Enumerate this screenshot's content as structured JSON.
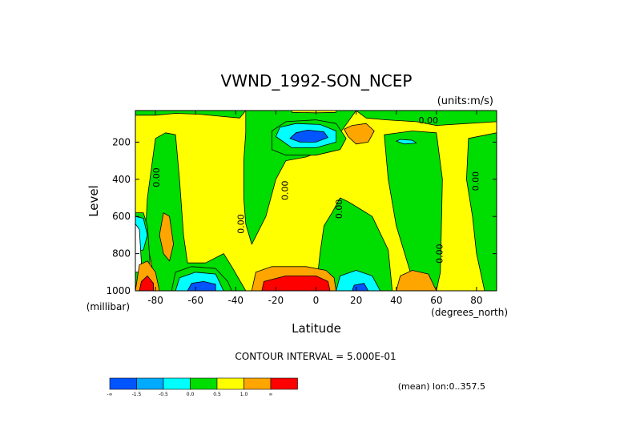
{
  "chart_data": {
    "type": "contour",
    "title": "VWND_1992-SON_NCEP",
    "units_label": "(units:m/s)",
    "xlabel": "Latitude",
    "x_unit_label": "(degrees_north)",
    "ylabel": "Level",
    "y_unit_label": "(millibar)",
    "xlim": [
      -90,
      90
    ],
    "ylim": [
      1000,
      30
    ],
    "y_inverted": true,
    "x_ticks": [
      "-80",
      "-60",
      "-40",
      "-20",
      "0",
      "20",
      "40",
      "60",
      "80"
    ],
    "x_tick_values": [
      -80,
      -60,
      -40,
      -20,
      0,
      20,
      40,
      60,
      80
    ],
    "y_ticks": [
      "200",
      "400",
      "600",
      "800",
      "1000"
    ],
    "y_tick_values": [
      200,
      400,
      600,
      800,
      1000
    ],
    "contour_interval_text": "CONTOUR INTERVAL = 5.000E-01",
    "footer_text": "(mean) lon:0..357.5",
    "contour_labels": [
      {
        "text": "0.00",
        "lat": 56,
        "level": 100
      },
      {
        "text": "0.00",
        "lat": -78,
        "level": 390
      },
      {
        "text": "0.00",
        "lat": -14,
        "level": 460
      },
      {
        "text": "0.00",
        "lat": 13,
        "level": 560
      },
      {
        "text": "0.00",
        "lat": -36,
        "level": 640
      },
      {
        "text": "0.00",
        "lat": 63,
        "level": 800
      },
      {
        "text": "0.00",
        "lat": 81,
        "level": 410
      }
    ],
    "colorbar": {
      "colors": [
        "#0055ff",
        "#00aaff",
        "#00ffff",
        "#00dd00",
        "#ffff00",
        "#ffa500",
        "#ff0000"
      ],
      "labels": [
        "-∞",
        "-1.5",
        "-0.5",
        "0.0",
        "0.5",
        "1.0",
        "∞"
      ]
    },
    "regions": [
      {
        "name": "background",
        "color": "#ffff00"
      },
      {
        "name": "green-top-left",
        "color": "#00dd00",
        "points": [
          [
            -90,
            30
          ],
          [
            -35,
            30
          ],
          [
            -38,
            70
          ],
          [
            -48,
            60
          ],
          [
            -58,
            50
          ],
          [
            -70,
            45
          ],
          [
            -80,
            55
          ],
          [
            -90,
            55
          ]
        ]
      },
      {
        "name": "green-left-tongue",
        "color": "#00dd00",
        "points": [
          [
            -80,
            1000
          ],
          [
            -82,
            850
          ],
          [
            -85,
            700
          ],
          [
            -84,
            500
          ],
          [
            -80,
            180
          ],
          [
            -75,
            150
          ],
          [
            -70,
            160
          ],
          [
            -68,
            400
          ],
          [
            -66,
            700
          ],
          [
            -64,
            850
          ],
          [
            -55,
            850
          ],
          [
            -46,
            800
          ],
          [
            -42,
            870
          ],
          [
            -35,
            1000
          ]
        ]
      },
      {
        "name": "green-low-left-edge",
        "color": "#00dd00",
        "points": [
          [
            -90,
            580
          ],
          [
            -86,
            580
          ],
          [
            -84,
            650
          ],
          [
            -83,
            800
          ],
          [
            -82,
            1000
          ],
          [
            -90,
            1000
          ]
        ]
      },
      {
        "name": "green-center-column",
        "color": "#00dd00",
        "points": [
          [
            -35,
            30
          ],
          [
            20,
            30
          ],
          [
            12,
            150
          ],
          [
            5,
            240
          ],
          [
            -5,
            280
          ],
          [
            -15,
            300
          ],
          [
            -20,
            400
          ],
          [
            -25,
            600
          ],
          [
            -32,
            750
          ],
          [
            -35,
            640
          ],
          [
            -36,
            500
          ],
          [
            -36,
            300
          ],
          [
            -35,
            150
          ]
        ]
      },
      {
        "name": "green-top-right",
        "color": "#00dd00",
        "points": [
          [
            20,
            30
          ],
          [
            90,
            30
          ],
          [
            90,
            90
          ],
          [
            75,
            100
          ],
          [
            60,
            110
          ],
          [
            50,
            90
          ],
          [
            35,
            80
          ],
          [
            25,
            70
          ]
        ]
      },
      {
        "name": "green-right-column",
        "color": "#00dd00",
        "points": [
          [
            34,
            160
          ],
          [
            48,
            140
          ],
          [
            60,
            150
          ],
          [
            63,
            400
          ],
          [
            62,
            900
          ],
          [
            60,
            1000
          ],
          [
            53,
            1000
          ],
          [
            47,
            900
          ],
          [
            40,
            650
          ],
          [
            36,
            400
          ]
        ]
      },
      {
        "name": "green-right-edge",
        "color": "#00dd00",
        "points": [
          [
            76,
            180
          ],
          [
            90,
            150
          ],
          [
            90,
            1000
          ],
          [
            84,
            1000
          ],
          [
            80,
            800
          ],
          [
            78,
            600
          ],
          [
            75,
            400
          ]
        ]
      },
      {
        "name": "green-center-lower",
        "color": "#00dd00",
        "points": [
          [
            0,
            1000
          ],
          [
            2,
            800
          ],
          [
            4,
            650
          ],
          [
            8,
            580
          ],
          [
            12,
            500
          ],
          [
            16,
            520
          ],
          [
            22,
            560
          ],
          [
            28,
            600
          ],
          [
            36,
            780
          ],
          [
            38,
            1000
          ]
        ]
      },
      {
        "name": "green-jet-halo",
        "color": "#00dd00",
        "points": [
          [
            -22,
            240
          ],
          [
            -22,
            140
          ],
          [
            -15,
            90
          ],
          [
            0,
            80
          ],
          [
            10,
            100
          ],
          [
            15,
            180
          ],
          [
            12,
            240
          ],
          [
            0,
            270
          ],
          [
            -15,
            270
          ]
        ]
      },
      {
        "name": "cyan-jet",
        "color": "#00ffff",
        "points": [
          [
            -20,
            170
          ],
          [
            -18,
            120
          ],
          [
            -10,
            100
          ],
          [
            2,
            105
          ],
          [
            10,
            140
          ],
          [
            10,
            200
          ],
          [
            0,
            230
          ],
          [
            -12,
            230
          ]
        ]
      },
      {
        "name": "blue-jet-core",
        "color": "#0055ff",
        "points": [
          [
            -13,
            180
          ],
          [
            -10,
            150
          ],
          [
            -4,
            135
          ],
          [
            4,
            145
          ],
          [
            6,
            175
          ],
          [
            0,
            200
          ],
          [
            -8,
            200
          ]
        ]
      },
      {
        "name": "orange-upper-right",
        "color": "#ffa500",
        "points": [
          [
            14,
            130
          ],
          [
            18,
            110
          ],
          [
            25,
            100
          ],
          [
            29,
            140
          ],
          [
            26,
            200
          ],
          [
            20,
            210
          ],
          [
            16,
            170
          ]
        ]
      },
      {
        "name": "cyan-upper-right-patch",
        "color": "#00ffff",
        "points": [
          [
            40,
            195
          ],
          [
            42,
            185
          ],
          [
            48,
            190
          ],
          [
            50,
            205
          ],
          [
            44,
            210
          ]
        ]
      },
      {
        "name": "cyan-left-edge",
        "color": "#00ffff",
        "points": [
          [
            -90,
            600
          ],
          [
            -86,
            610
          ],
          [
            -84,
            700
          ],
          [
            -86,
            780
          ],
          [
            -90,
            790
          ]
        ]
      },
      {
        "name": "white-left-edge",
        "color": "#ffffff",
        "points": [
          [
            -90,
            640
          ],
          [
            -88,
            670
          ],
          [
            -87,
            850
          ],
          [
            -88,
            900
          ],
          [
            -90,
            900
          ]
        ]
      },
      {
        "name": "orange-left-mid",
        "color": "#ffa500",
        "points": [
          [
            -76,
            580
          ],
          [
            -73,
            600
          ],
          [
            -71,
            750
          ],
          [
            -73,
            840
          ],
          [
            -76,
            800
          ],
          [
            -78,
            700
          ]
        ]
      },
      {
        "name": "orange-left-bottom",
        "color": "#ffa500",
        "points": [
          [
            -90,
            1000
          ],
          [
            -88,
            860
          ],
          [
            -84,
            840
          ],
          [
            -80,
            900
          ],
          [
            -78,
            1000
          ]
        ]
      },
      {
        "name": "red-left-bottom",
        "color": "#ff0000",
        "points": [
          [
            -88,
            1000
          ],
          [
            -87,
            950
          ],
          [
            -84,
            920
          ],
          [
            -81,
            960
          ],
          [
            -81,
            1000
          ]
        ]
      },
      {
        "name": "green-lower-left-halo",
        "color": "#00dd00",
        "points": [
          [
            -72,
            1000
          ],
          [
            -70,
            900
          ],
          [
            -62,
            870
          ],
          [
            -50,
            880
          ],
          [
            -44,
            950
          ],
          [
            -42,
            1000
          ]
        ]
      },
      {
        "name": "cyan-lower-left",
        "color": "#00ffff",
        "points": [
          [
            -70,
            1000
          ],
          [
            -68,
            930
          ],
          [
            -60,
            900
          ],
          [
            -50,
            910
          ],
          [
            -46,
            1000
          ]
        ]
      },
      {
        "name": "blue-lower-left",
        "color": "#0055ff",
        "points": [
          [
            -64,
            1000
          ],
          [
            -62,
            960
          ],
          [
            -56,
            950
          ],
          [
            -50,
            965
          ],
          [
            -50,
            1000
          ]
        ]
      },
      {
        "name": "orange-lower-center",
        "color": "#ffa500",
        "points": [
          [
            -32,
            1000
          ],
          [
            -30,
            900
          ],
          [
            -22,
            870
          ],
          [
            -5,
            870
          ],
          [
            5,
            890
          ],
          [
            9,
            930
          ],
          [
            10,
            1000
          ]
        ]
      },
      {
        "name": "red-lower-center",
        "color": "#ff0000",
        "points": [
          [
            -27,
            1000
          ],
          [
            -26,
            950
          ],
          [
            -15,
            920
          ],
          [
            0,
            920
          ],
          [
            6,
            950
          ],
          [
            7,
            1000
          ]
        ]
      },
      {
        "name": "cyan-lower-mid",
        "color": "#00ffff",
        "points": [
          [
            10,
            1000
          ],
          [
            12,
            920
          ],
          [
            20,
            890
          ],
          [
            28,
            920
          ],
          [
            32,
            1000
          ]
        ]
      },
      {
        "name": "blue-lower-mid",
        "color": "#0055ff",
        "points": [
          [
            18,
            1000
          ],
          [
            19,
            970
          ],
          [
            24,
            960
          ],
          [
            26,
            1000
          ]
        ]
      },
      {
        "name": "orange-lower-right",
        "color": "#ffa500",
        "points": [
          [
            40,
            1000
          ],
          [
            42,
            920
          ],
          [
            48,
            890
          ],
          [
            56,
            910
          ],
          [
            60,
            1000
          ]
        ]
      },
      {
        "name": "yellow-top-sliver",
        "color": "#ffff00",
        "points": [
          [
            -12,
            30
          ],
          [
            -12,
            40
          ],
          [
            0,
            42
          ],
          [
            10,
            40
          ],
          [
            10,
            30
          ]
        ]
      }
    ]
  }
}
